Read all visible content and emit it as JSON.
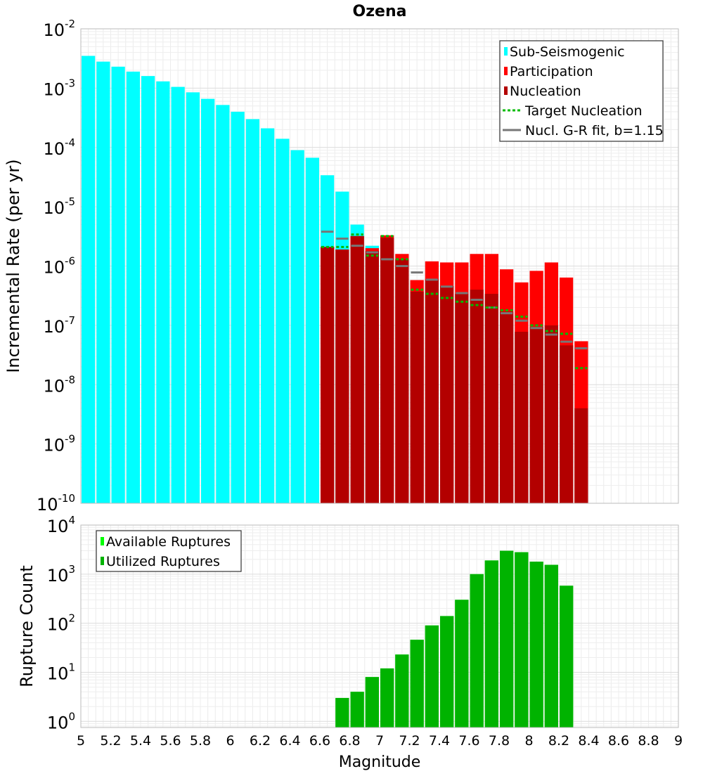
{
  "chart_data": [
    {
      "type": "bar",
      "title": "Ozena",
      "xlabel": "",
      "ylabel": "Incremental Rate (per yr)",
      "yscale": "log",
      "ylim": [
        1e-10,
        0.01
      ],
      "xlim": [
        5,
        9
      ],
      "bin_width": 0.1,
      "grid": true,
      "legend_position": "top-right",
      "y_ticks": [
        {
          "base": "10",
          "exp": "-10",
          "value": 1e-10
        },
        {
          "base": "10",
          "exp": "-9",
          "value": 1e-09
        },
        {
          "base": "10",
          "exp": "-8",
          "value": 1e-08
        },
        {
          "base": "10",
          "exp": "-7",
          "value": 1e-07
        },
        {
          "base": "10",
          "exp": "-6",
          "value": 1e-06
        },
        {
          "base": "10",
          "exp": "-5",
          "value": 1e-05
        },
        {
          "base": "10",
          "exp": "-4",
          "value": 0.0001
        },
        {
          "base": "10",
          "exp": "-3",
          "value": 0.001
        },
        {
          "base": "10",
          "exp": "-2",
          "value": 0.01
        }
      ],
      "series": [
        {
          "name": "Sub-Seismogenic",
          "kind": "bar",
          "color": "#00ffff",
          "x": [
            5.05,
            5.15,
            5.25,
            5.35,
            5.45,
            5.55,
            5.65,
            5.75,
            5.85,
            5.95,
            6.05,
            6.15,
            6.25,
            6.35,
            6.45,
            6.55,
            6.65,
            6.75,
            6.85,
            6.95
          ],
          "values": [
            0.0035,
            0.0028,
            0.0023,
            0.0019,
            0.0016,
            0.0013,
            0.00105,
            0.00085,
            0.00066,
            0.00052,
            0.0004,
            0.0003,
            0.00021,
            0.00014,
            9e-05,
            6.7e-05,
            3.4e-05,
            1.8e-05,
            5e-06,
            2.2e-06
          ]
        },
        {
          "name": "Participation",
          "kind": "bar",
          "color": "#ff0000",
          "x": [
            6.65,
            6.75,
            6.85,
            6.95,
            7.05,
            7.15,
            7.25,
            7.35,
            7.45,
            7.55,
            7.65,
            7.75,
            7.85,
            7.95,
            8.05,
            8.15,
            8.25,
            8.35
          ],
          "values": [
            2.1e-06,
            1.9e-06,
            3.2e-06,
            2e-06,
            3.3e-06,
            1.6e-06,
            5.8e-07,
            1.2e-06,
            1.15e-06,
            1.15e-06,
            1.6e-06,
            1.6e-06,
            8.8e-07,
            5.3e-07,
            8.3e-07,
            1.15e-06,
            6.4e-07,
            5.4e-08
          ]
        },
        {
          "name": "Nucleation",
          "kind": "bar",
          "color": "#b30000",
          "x": [
            6.65,
            6.75,
            6.85,
            6.95,
            7.05,
            7.15,
            7.25,
            7.35,
            7.45,
            7.55,
            7.65,
            7.75,
            7.85,
            7.95,
            8.05,
            8.15,
            8.25,
            8.35
          ],
          "values": [
            2.1e-06,
            1.9e-06,
            3.2e-06,
            1.8e-06,
            3e-06,
            1.3e-06,
            3.7e-07,
            5.9e-07,
            4.6e-07,
            3.4e-07,
            4e-07,
            3.4e-07,
            1.7e-07,
            7.8e-08,
            9.4e-08,
            1e-07,
            4.6e-08,
            4e-09
          ]
        },
        {
          "name": "Target Nucleation",
          "kind": "dotted-step",
          "color": "#00bb00",
          "x": [
            6.65,
            6.75,
            6.85,
            6.95,
            7.05,
            7.15,
            7.25,
            7.35,
            7.45,
            7.55,
            7.65,
            7.75,
            7.85,
            7.95,
            8.05,
            8.15,
            8.25,
            8.35
          ],
          "values": [
            2.1e-06,
            2.1e-06,
            3.4e-06,
            1.5e-06,
            3.2e-06,
            1.3e-06,
            4e-07,
            3.4e-07,
            2.9e-07,
            2.5e-07,
            2.2e-07,
            2e-07,
            1.8e-07,
            1.4e-07,
            1e-07,
            8e-08,
            7.2e-08,
            1.9e-08
          ]
        },
        {
          "name": "Nucl. G-R fit, b=1.15",
          "kind": "step",
          "color": "#777777",
          "x": [
            6.65,
            6.75,
            6.85,
            6.95,
            7.05,
            7.15,
            7.25,
            7.35,
            7.45,
            7.55,
            7.65,
            7.75,
            7.85,
            7.95,
            8.05,
            8.15,
            8.25,
            8.35
          ],
          "values": [
            3.8e-06,
            2.9e-06,
            2.2e-06,
            1.7e-06,
            1.3e-06,
            1e-06,
            7.8e-07,
            5.9e-07,
            4.5e-07,
            3.5e-07,
            2.7e-07,
            2e-07,
            1.6e-07,
            1.2e-07,
            9e-08,
            7e-08,
            5.3e-08,
            4.1e-08
          ]
        }
      ]
    },
    {
      "type": "bar",
      "title": "",
      "xlabel": "Magnitude",
      "ylabel": "Rupture Count",
      "yscale": "log",
      "ylim": [
        0.75,
        10000
      ],
      "xlim": [
        5,
        9
      ],
      "bin_width": 0.1,
      "grid": true,
      "legend_position": "top-left",
      "x_ticks": [
        "5",
        "5.2",
        "5.4",
        "5.6",
        "5.8",
        "6",
        "6.2",
        "6.4",
        "6.6",
        "6.8",
        "7",
        "7.2",
        "7.4",
        "7.6",
        "7.8",
        "8",
        "8.2",
        "8.4",
        "8.6",
        "8.8",
        "9"
      ],
      "y_ticks": [
        {
          "base": "10",
          "exp": "0",
          "value": 1
        },
        {
          "base": "10",
          "exp": "1",
          "value": 10
        },
        {
          "base": "10",
          "exp": "2",
          "value": 100
        },
        {
          "base": "10",
          "exp": "3",
          "value": 1000
        },
        {
          "base": "10",
          "exp": "4",
          "value": 10000
        }
      ],
      "series": [
        {
          "name": "Available Ruptures",
          "kind": "bar",
          "color": "#00ff00",
          "x": [
            6.75,
            6.85,
            6.95,
            7.05,
            7.15,
            7.25,
            7.35,
            7.45,
            7.55,
            7.65,
            7.75,
            7.85,
            7.95,
            8.05,
            8.15,
            8.25
          ],
          "values": [
            3,
            4,
            8,
            12,
            23,
            46,
            90,
            140,
            300,
            1000,
            1900,
            3000,
            2800,
            1800,
            1550,
            580
          ]
        },
        {
          "name": "Utilized Ruptures",
          "kind": "bar",
          "color": "#00b300",
          "x": [
            6.75,
            6.85,
            6.95,
            7.05,
            7.15,
            7.25,
            7.35,
            7.45,
            7.55,
            7.65,
            7.75,
            7.85,
            7.95,
            8.05,
            8.15,
            8.25
          ],
          "values": [
            3,
            4,
            8,
            12,
            23,
            46,
            90,
            140,
            300,
            1000,
            1900,
            3000,
            2800,
            1800,
            1550,
            580
          ]
        }
      ]
    }
  ]
}
